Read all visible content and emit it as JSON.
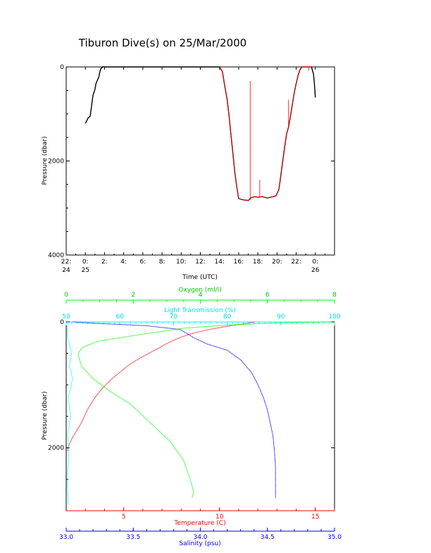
{
  "chart_data": [
    {
      "type": "line",
      "title": "Tiburon Dive(s) on 25/Mar/2000",
      "xlabel": "Time (UTC)",
      "ylabel": "Pressure (dbar)",
      "ylim": [
        4000,
        0
      ],
      "y_ticks": [
        "0",
        "2000",
        "4000"
      ],
      "x_tick_labels": [
        [
          "22:",
          "24"
        ],
        [
          "0:",
          "25"
        ],
        [
          "2:",
          ""
        ],
        [
          "4:",
          ""
        ],
        [
          "6:",
          ""
        ],
        [
          "8:",
          ""
        ],
        [
          "10:",
          ""
        ],
        [
          "12:",
          ""
        ],
        [
          "14:",
          ""
        ],
        [
          "16:",
          ""
        ],
        [
          "18:",
          ""
        ],
        [
          "20:",
          ""
        ],
        [
          "22:",
          ""
        ],
        [
          "0:",
          "26"
        ]
      ],
      "x_hours_range": [
        -2.0,
        26.0
      ],
      "series": [
        {
          "color": "#000000",
          "x_hours": [
            0.0,
            0.2,
            0.3,
            0.5,
            0.6,
            0.7,
            0.8,
            1.0,
            1.1,
            1.3,
            1.4,
            1.5,
            1.6,
            1.8,
            2.0,
            4.0,
            8.0,
            12.0,
            14.0,
            14.3,
            14.5,
            14.8,
            15.0,
            15.2,
            15.4,
            15.6,
            15.8,
            16.0,
            16.3,
            16.6,
            17.0,
            17.3,
            17.7,
            18.0,
            18.5,
            19.0,
            19.3,
            19.6,
            19.9,
            20.2,
            20.4,
            20.6,
            20.8,
            21.0,
            21.2,
            21.4,
            21.6,
            21.8,
            22.0,
            22.2,
            22.4,
            22.6,
            23.0,
            23.6,
            23.8,
            23.9,
            24.0
          ],
          "pressure": [
            1200,
            1120,
            1080,
            1050,
            900,
            750,
            600,
            480,
            360,
            260,
            220,
            120,
            40,
            0,
            0,
            0,
            0,
            0,
            0,
            100,
            350,
            700,
            1050,
            1450,
            1850,
            2250,
            2550,
            2800,
            2820,
            2830,
            2840,
            2780,
            2760,
            2770,
            2760,
            2790,
            2770,
            2760,
            2740,
            2600,
            2300,
            2000,
            1700,
            1420,
            1280,
            1050,
            800,
            550,
            350,
            180,
            60,
            0,
            0,
            0,
            150,
            350,
            650
          ]
        },
        {
          "color": "#ff0000",
          "x_hours": [
            14.0,
            14.3,
            14.5,
            14.8,
            15.0,
            15.2,
            15.4,
            15.6,
            15.8,
            16.0,
            16.3,
            16.6,
            17.0,
            17.3,
            17.7,
            18.0,
            18.5,
            19.0,
            19.3,
            19.6,
            19.9,
            20.2,
            20.4,
            20.6,
            20.8,
            21.0,
            21.2,
            21.4,
            21.6,
            21.8,
            22.0,
            22.2,
            22.4,
            22.6,
            23.0,
            23.6
          ],
          "pressure": [
            0,
            100,
            350,
            700,
            1050,
            1450,
            1850,
            2250,
            2550,
            2800,
            2820,
            2830,
            2840,
            2780,
            2760,
            2770,
            2760,
            2790,
            2770,
            2760,
            2740,
            2600,
            2300,
            2000,
            1700,
            1420,
            1280,
            1050,
            800,
            550,
            350,
            180,
            60,
            0,
            0,
            0
          ]
        }
      ],
      "spikes": [
        {
          "x_hours": 17.2,
          "pressure_top": 300,
          "pressure_bottom": 2830
        },
        {
          "x_hours": 18.2,
          "pressure_top": 2400,
          "pressure_bottom": 2770
        },
        {
          "x_hours": 21.2,
          "pressure_top": 700,
          "pressure_bottom": 1280
        },
        {
          "x_hours": 23.3,
          "pressure_top": 0,
          "pressure_bottom": 80
        }
      ]
    },
    {
      "type": "line",
      "ylabel": "Pressure (dbar)",
      "ylim": [
        3000,
        0
      ],
      "y_ticks": [
        "0",
        "2000"
      ],
      "axes": {
        "oxygen": {
          "label": "Oxygen (ml/l)",
          "color": "#00ff00",
          "range": [
            0,
            8
          ],
          "ticks": [
            "0",
            "2",
            "4",
            "6",
            "8"
          ]
        },
        "transmission": {
          "label": "Light Transmission (%)",
          "color": "#00ffff",
          "range": [
            50,
            100
          ],
          "ticks": [
            "50",
            "60",
            "70",
            "80",
            "90",
            "100"
          ]
        },
        "temperature": {
          "label": "Temperature (C)",
          "color": "#ff0000",
          "range": [
            2,
            16
          ],
          "ticks": [
            "5",
            "10",
            "15"
          ]
        },
        "salinity": {
          "label": "Salinity (psu)",
          "color": "#0000ff",
          "range": [
            33.0,
            35.0
          ],
          "ticks": [
            "33.0",
            "33.5",
            "34.0",
            "34.5",
            "35.0"
          ]
        }
      },
      "series": [
        {
          "name": "Temperature (C)",
          "axis": "temperature",
          "color": "#ff0000",
          "values": [
            11.8,
            11.5,
            10.8,
            10.0,
            9.3,
            8.6,
            8.1,
            7.6,
            7.2,
            6.8,
            6.3,
            5.7,
            5.2,
            4.8,
            4.4,
            3.9,
            3.5,
            3.1,
            2.8,
            2.5,
            2.3,
            2.15,
            2.05
          ],
          "pressure": [
            0,
            20,
            50,
            90,
            130,
            180,
            230,
            290,
            350,
            420,
            500,
            600,
            700,
            800,
            900,
            1050,
            1200,
            1400,
            1600,
            1750,
            1850,
            1950,
            2050
          ]
        },
        {
          "name": "Salinity (psu)",
          "axis": "salinity",
          "color": "#0000ff",
          "values": [
            33.05,
            33.2,
            33.4,
            33.6,
            33.85,
            33.95,
            34.05,
            34.2,
            34.3,
            34.38,
            34.43,
            34.47,
            34.5,
            34.52,
            34.54,
            34.55,
            34.56,
            34.56,
            34.56
          ],
          "pressure": [
            0,
            20,
            40,
            60,
            120,
            250,
            350,
            450,
            600,
            800,
            1000,
            1200,
            1400,
            1600,
            1800,
            2000,
            2300,
            2600,
            2800
          ]
        },
        {
          "name": "Oxygen (ml/l)",
          "axis": "oxygen",
          "color": "#00ff00",
          "values": [
            7.9,
            6.0,
            4.8,
            3.5,
            2.2,
            1.0,
            0.5,
            0.35,
            0.45,
            0.8,
            1.3,
            1.9,
            2.5,
            3.1,
            3.5,
            3.7,
            3.8,
            3.75
          ],
          "pressure": [
            0,
            20,
            50,
            100,
            200,
            300,
            400,
            500,
            700,
            900,
            1100,
            1300,
            1600,
            1900,
            2200,
            2500,
            2700,
            2800
          ]
        },
        {
          "name": "Light Transmission (%)",
          "axis": "transmission",
          "color": "#00ffff",
          "values": [
            50.3,
            50.2,
            51.0,
            50.6,
            51.2,
            50.4,
            50.8,
            50.3,
            50.5,
            50.2,
            50.4
          ],
          "pressure": [
            0,
            200,
            500,
            700,
            900,
            1200,
            1500,
            1800,
            2100,
            2500,
            2900
          ]
        }
      ]
    }
  ]
}
